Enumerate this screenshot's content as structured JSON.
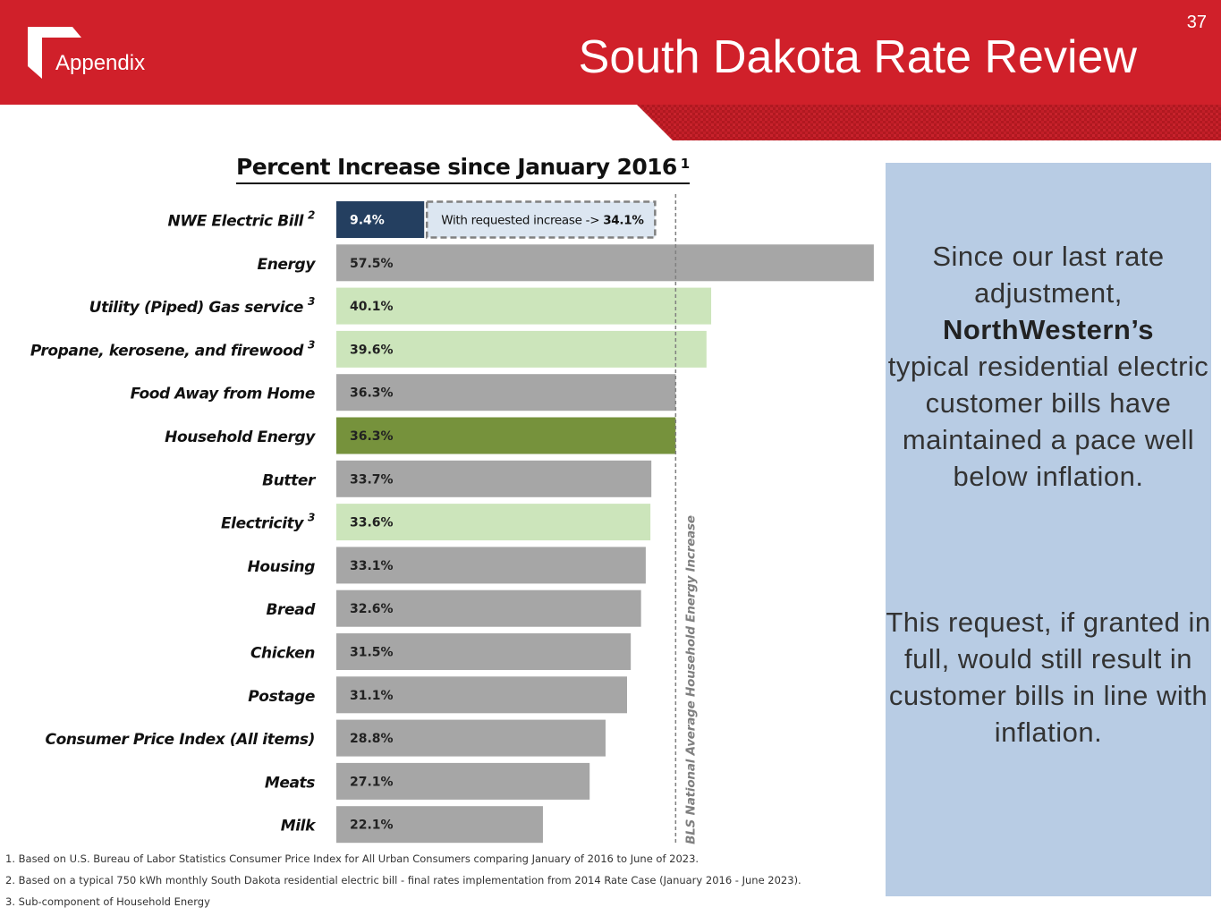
{
  "header": {
    "section_label": "Appendix",
    "title": "South Dakota Rate Review",
    "page_number": "37",
    "brand_color": "#d0202a"
  },
  "chart_data": {
    "type": "bar",
    "orientation": "horizontal",
    "title": "Percent Increase since January 2016",
    "title_footnote": "1",
    "categories": [
      "NWE Electric Bill",
      "Energy",
      "Utility (Piped) Gas service",
      "Propane, kerosene, and firewood",
      "Food Away from Home",
      "Household Energy",
      "Butter",
      "Electricity",
      "Housing",
      "Bread",
      "Chicken",
      "Postage",
      "Consumer Price Index (All items)",
      "Meats",
      "Milk"
    ],
    "category_footnotes": [
      "2",
      "",
      "3",
      "3",
      "",
      "",
      "",
      "3",
      "",
      "",
      "",
      "",
      "",
      "",
      ""
    ],
    "values": [
      9.4,
      57.5,
      40.1,
      39.6,
      36.3,
      36.3,
      33.7,
      33.6,
      33.1,
      32.6,
      31.5,
      31.1,
      28.8,
      27.1,
      22.1
    ],
    "value_labels": [
      "9.4%",
      "57.5%",
      "40.1%",
      "39.6%",
      "36.3%",
      "36.3%",
      "33.7%",
      "33.6%",
      "33.1%",
      "32.6%",
      "31.5%",
      "31.1%",
      "28.8%",
      "27.1%",
      "22.1%"
    ],
    "bar_colors": [
      "#243f60",
      "#a6a6a6",
      "#cce5bb",
      "#cce5bb",
      "#a6a6a6",
      "#76923c",
      "#a6a6a6",
      "#cce5bb",
      "#a6a6a6",
      "#a6a6a6",
      "#a6a6a6",
      "#a6a6a6",
      "#a6a6a6",
      "#a6a6a6",
      "#a6a6a6"
    ],
    "requested_increase": {
      "label_prefix": "With requested increase ->",
      "value": 34.1,
      "value_label": "34.1%"
    },
    "reference_line": {
      "value": 36.3,
      "label": "BLS National Average Household Energy Increase"
    }
  },
  "footnotes": [
    "1. Based on U.S. Bureau of Labor Statistics Consumer Price Index for All Urban Consumers comparing January of 2016 to June of 2023.",
    "2. Based on a typical 750 kWh monthly South Dakota residential electric bill - final rates implementation from 2014 Rate Case (January 2016 - June 2023).",
    "3. Sub-component of Household Energy"
  ],
  "sidebar": {
    "para1_before": "Since our last rate adjustment,",
    "para1_bold": "NorthWestern’s",
    "para1_after": "typical residential electric customer bills have maintained a pace well below inflation.",
    "para2": "This request, if granted in full, would still result in customer bills in line with inflation."
  }
}
